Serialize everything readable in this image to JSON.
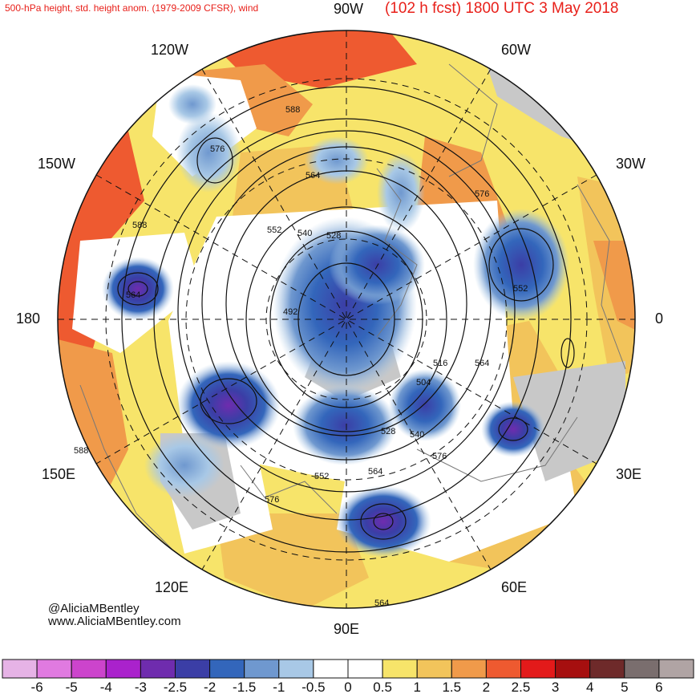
{
  "header": {
    "left_title": "500-hPa height, std. height anom. (1979-2009 CFSR), wind",
    "right_title": "(102 h fcst) 1800 UTC 3 May 2018",
    "color": "#e8201a"
  },
  "longitude_labels": {
    "top": "90W",
    "top_left": "120W",
    "top_right": "60W",
    "upper_left": "150W",
    "upper_right": "30W",
    "left": "180",
    "right": "0",
    "lower_left": "150E",
    "lower_right": "30E",
    "bottom_left": "120E",
    "bottom_right": "60E",
    "bottom": "90E"
  },
  "contour_labels": [
    "588",
    "576",
    "564",
    "552",
    "540",
    "528",
    "492",
    "564",
    "576",
    "552",
    "516",
    "564",
    "504",
    "528",
    "540",
    "576",
    "564",
    "552",
    "588",
    "576",
    "588",
    "564"
  ],
  "credits": {
    "handle": "@AliciaMBentley",
    "website": "www.AliciaMBentley.com"
  },
  "colorbar": {
    "labels": [
      "-6",
      "-5",
      "-4",
      "-3",
      "-2.5",
      "-2",
      "-1.5",
      "-1",
      "-0.5",
      "0",
      "0.5",
      "1",
      "1.5",
      "2",
      "2.5",
      "3",
      "4",
      "5",
      "6"
    ],
    "colors": [
      "#e6b3e6",
      "#e07ae0",
      "#cc44cc",
      "#aa22cc",
      "#6f2cae",
      "#3b3ea6",
      "#3366bb",
      "#6f98cf",
      "#a8c8e6",
      "#ffffff",
      "#ffffff",
      "#f7e46a",
      "#f2c45b",
      "#f09a4a",
      "#ee5a30",
      "#e31a1a",
      "#a60f0f",
      "#6e2a2a",
      "#7a6e6e",
      "#b0a4a4"
    ]
  }
}
